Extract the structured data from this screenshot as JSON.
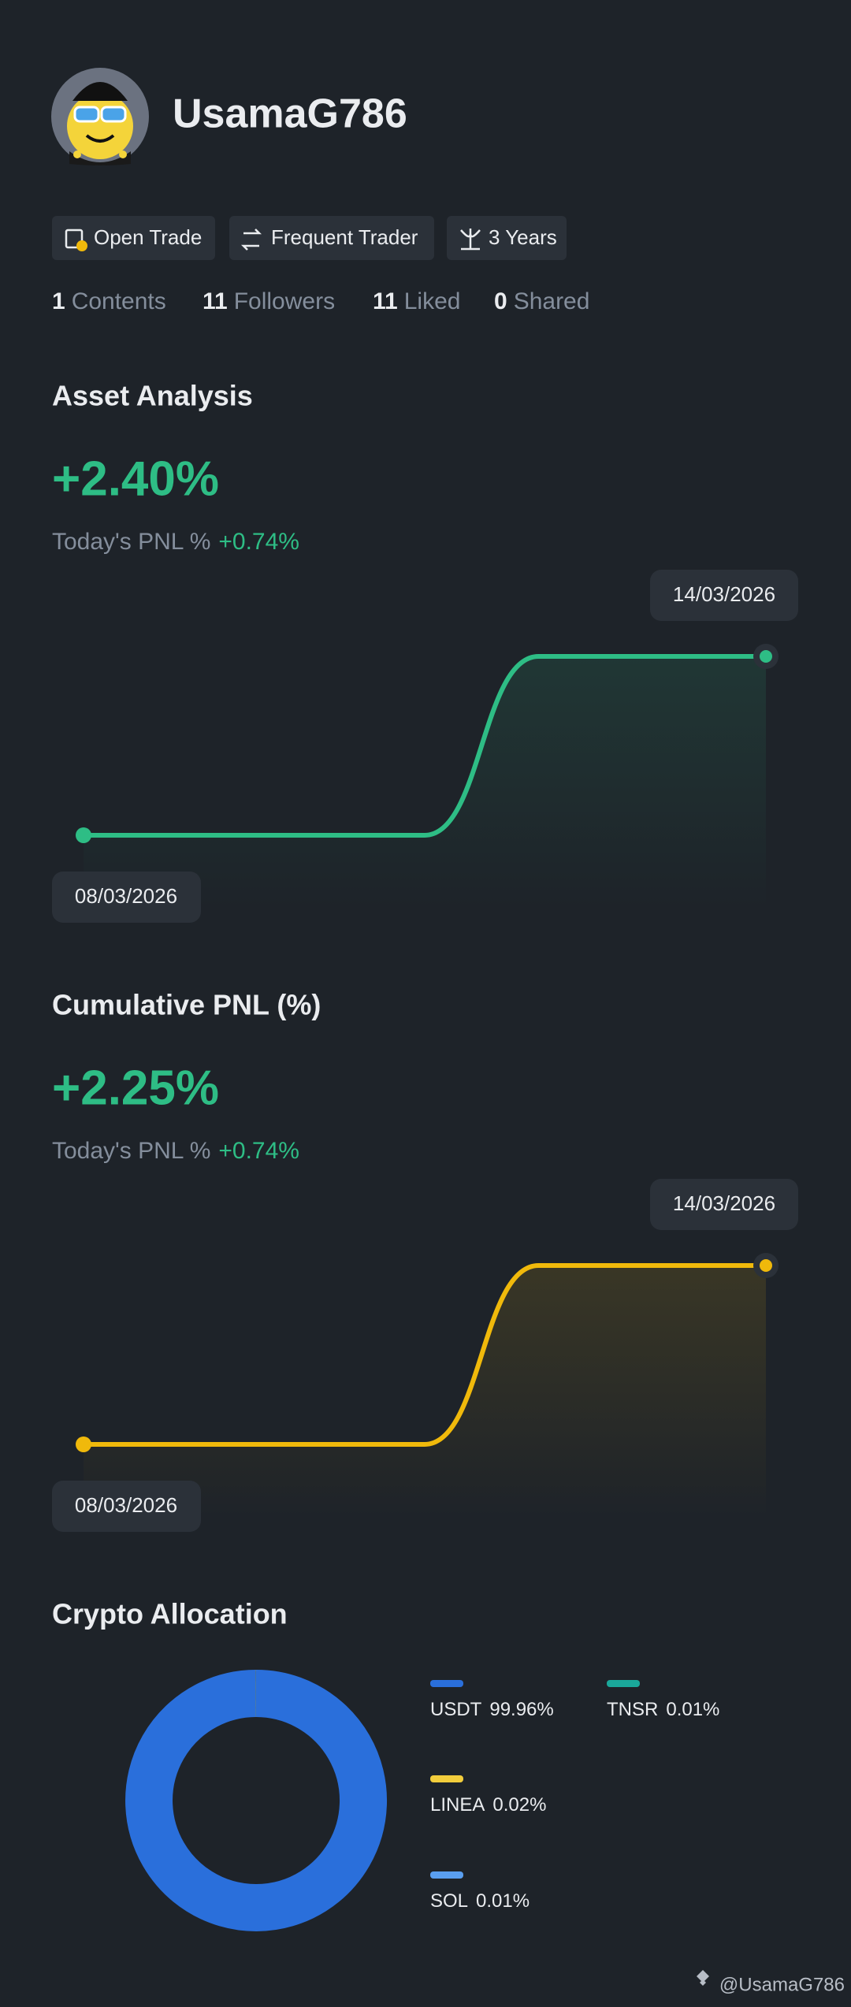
{
  "profile": {
    "username": "UsamaG786"
  },
  "badges": [
    "Open Trade",
    "Frequent Trader",
    "3 Years"
  ],
  "stats": [
    {
      "count": 1,
      "label": "Contents"
    },
    {
      "count": 11,
      "label": "Followers"
    },
    {
      "count": 11,
      "label": "Liked"
    },
    {
      "count": 0,
      "label": "Shared"
    }
  ],
  "chart_data": [
    {
      "type": "line",
      "title": "Asset Analysis",
      "headline": "+2.40%",
      "today_label": "Today's PNL %",
      "today_value": "+0.74%",
      "x": [
        "08/03/2026",
        null,
        null,
        null,
        null,
        null,
        "14/03/2026"
      ],
      "values": [
        0,
        0,
        0,
        0,
        2.4,
        2.4,
        2.4
      ],
      "color": "#2ebd85"
    },
    {
      "type": "line",
      "title": "Cumulative PNL (%)",
      "headline": "+2.25%",
      "today_label": "Today's PNL %",
      "today_value": "+0.74%",
      "x": [
        "08/03/2026",
        null,
        null,
        null,
        null,
        null,
        "14/03/2026"
      ],
      "values": [
        0,
        0,
        0,
        0,
        2.25,
        2.25,
        2.25
      ],
      "color": "#f0b90b"
    },
    {
      "type": "donut",
      "title": "Crypto Allocation",
      "categories": [
        "USDT",
        "TNSR",
        "LINEA",
        "SOL"
      ],
      "values": [
        99.96,
        0.01,
        0.02,
        0.01
      ],
      "value_labels": [
        "99.96%",
        "0.01%",
        "0.02%",
        "0.01%"
      ],
      "colors": [
        "#2a6fdb",
        "#1aa89a",
        "#f2cd3c",
        "#5a9ff0"
      ]
    }
  ],
  "watermark": "@UsamaG786"
}
